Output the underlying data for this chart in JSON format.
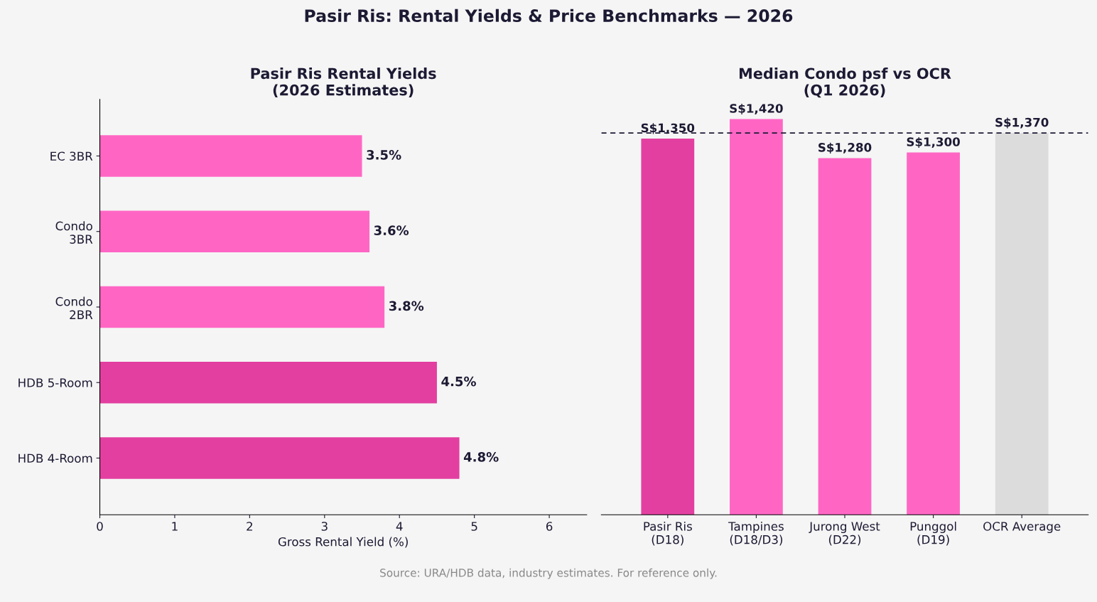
{
  "chart_data": [
    {
      "type": "bar",
      "orientation": "horizontal",
      "title": "Pasir Ris Rental Yields\n(2026 Estimates)",
      "xlabel": "Gross Rental Yield (%)",
      "categories": [
        "EC 3BR",
        "Condo\n3BR",
        "Condo\n2BR",
        "HDB 5-Room",
        "HDB 4-Room"
      ],
      "values": [
        3.5,
        3.6,
        3.8,
        4.5,
        4.8
      ],
      "colors": [
        "#ff66c4",
        "#ff66c4",
        "#ff66c4",
        "#e33fa1",
        "#e33fa1"
      ],
      "value_labels": [
        "3.5%",
        "3.6%",
        "3.8%",
        "4.5%",
        "4.8%"
      ],
      "xlim": [
        0,
        6.5
      ],
      "xticks": [
        0,
        1,
        2,
        3,
        4,
        5,
        6
      ],
      "grid": false,
      "annotations": [
        "Pasir Ris: Rental Yields & Price Benchmarks — 2026",
        "Source: URA/HDB data, industry estimates. For reference only."
      ]
    },
    {
      "type": "bar",
      "title": "Median Condo psf vs OCR\n(Q1 2026)",
      "categories": [
        "Pasir Ris\n(D18)",
        "Tampines\n(D18/D3)",
        "Jurong West\n(D22)",
        "Punggol\n(D19)",
        "OCR Average"
      ],
      "values": [
        1350,
        1420,
        1280,
        1300,
        1370
      ],
      "colors": [
        "#e33fa1",
        "#ff66c4",
        "#ff66c4",
        "#ff66c4",
        "#dcdcdc"
      ],
      "value_labels": [
        "S$1,350",
        "S$1,420",
        "S$1,280",
        "S$1,300",
        "S$1,370"
      ],
      "tick_labels": "x",
      "grid": false,
      "ref_lines": [
        {
          "axis": "y",
          "value": 1370,
          "color": "#1c1a33",
          "line_style": "dashed"
        }
      ]
    }
  ]
}
